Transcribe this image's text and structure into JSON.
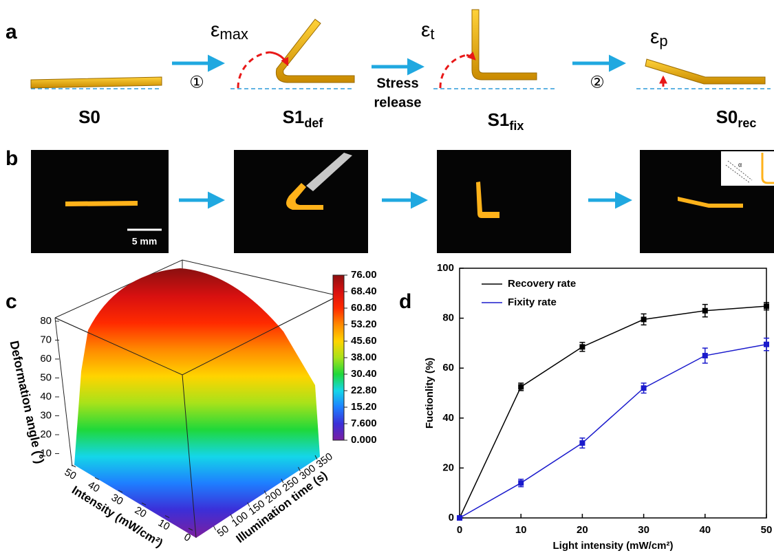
{
  "panel_a": {
    "label": "a",
    "states": [
      {
        "label": "S0"
      },
      {
        "label": "S1",
        "sub": "def"
      },
      {
        "label": "S1",
        "sub": "fix"
      },
      {
        "label": "S0",
        "sub": "rec"
      }
    ],
    "strains": [
      {
        "symbol": "ε",
        "sub": "max"
      },
      {
        "symbol": "ε",
        "sub": "t"
      },
      {
        "symbol": "ε",
        "sub": "p"
      }
    ],
    "steps": [
      "①",
      [
        "Stress",
        "release"
      ],
      "②"
    ]
  },
  "panel_b": {
    "label": "b",
    "scale_bar": "5 mm",
    "inset_angle": "α"
  },
  "chart_data": [
    {
      "type": "surface",
      "panel_label": "c",
      "zlabel": "Deformation angle (°)",
      "ylabel": "Intensity (mW/cm²)",
      "xlabel": "Illumination time (s)",
      "zlim": [
        0,
        80
      ],
      "zticks": [
        10,
        20,
        30,
        40,
        50,
        60,
        70,
        80
      ],
      "ylim": [
        0,
        50
      ],
      "yticks": [
        0,
        10,
        20,
        30,
        40,
        50
      ],
      "xlim": [
        0,
        350
      ],
      "xticks": [
        50,
        100,
        150,
        200,
        250,
        300,
        350
      ],
      "clim": [
        0,
        76
      ],
      "colorbar_ticks": [
        {
          "value": 76,
          "label": "76.00"
        },
        {
          "value": 68.4,
          "label": "68.40"
        },
        {
          "value": 60.8,
          "label": "60.80"
        },
        {
          "value": 53.2,
          "label": "53.20"
        },
        {
          "value": 45.6,
          "label": "45.60"
        },
        {
          "value": 38,
          "label": "38.00"
        },
        {
          "value": 30.4,
          "label": "30.40"
        },
        {
          "value": 22.8,
          "label": "22.80"
        },
        {
          "value": 15.2,
          "label": "15.20"
        },
        {
          "value": 7.6,
          "label": "7.600"
        },
        {
          "value": 0,
          "label": "0.000"
        }
      ],
      "colormap": [
        "#7a1fa2",
        "#3b2fd8",
        "#1e7fff",
        "#14d6e8",
        "#1fd83a",
        "#a8e21a",
        "#ffd400",
        "#ff8a00",
        "#ff2a00",
        "#d81010",
        "#8e1010"
      ]
    },
    {
      "type": "line",
      "panel_label": "d",
      "xlabel": "Light intensity (mW/cm²)",
      "ylabel": "Fuctionlity (%)",
      "x": [
        0,
        10,
        20,
        30,
        40,
        50
      ],
      "xlim": [
        0,
        50
      ],
      "xticks": [
        0,
        10,
        20,
        30,
        40,
        50
      ],
      "ylim": [
        0,
        100
      ],
      "yticks": [
        0,
        20,
        40,
        60,
        80,
        100
      ],
      "series": [
        {
          "name": "Recovery rate",
          "color": "#000000",
          "values": [
            0,
            52.5,
            68.5,
            79.5,
            83,
            84.8
          ],
          "errors": [
            0,
            1.5,
            1.8,
            2.2,
            2.5,
            1.5
          ]
        },
        {
          "name": "Fixity rate",
          "color": "#1a1acc",
          "values": [
            0,
            14,
            30,
            52,
            65,
            69.5
          ],
          "errors": [
            0,
            1.5,
            2,
            2,
            3,
            2.5
          ]
        }
      ]
    }
  ]
}
